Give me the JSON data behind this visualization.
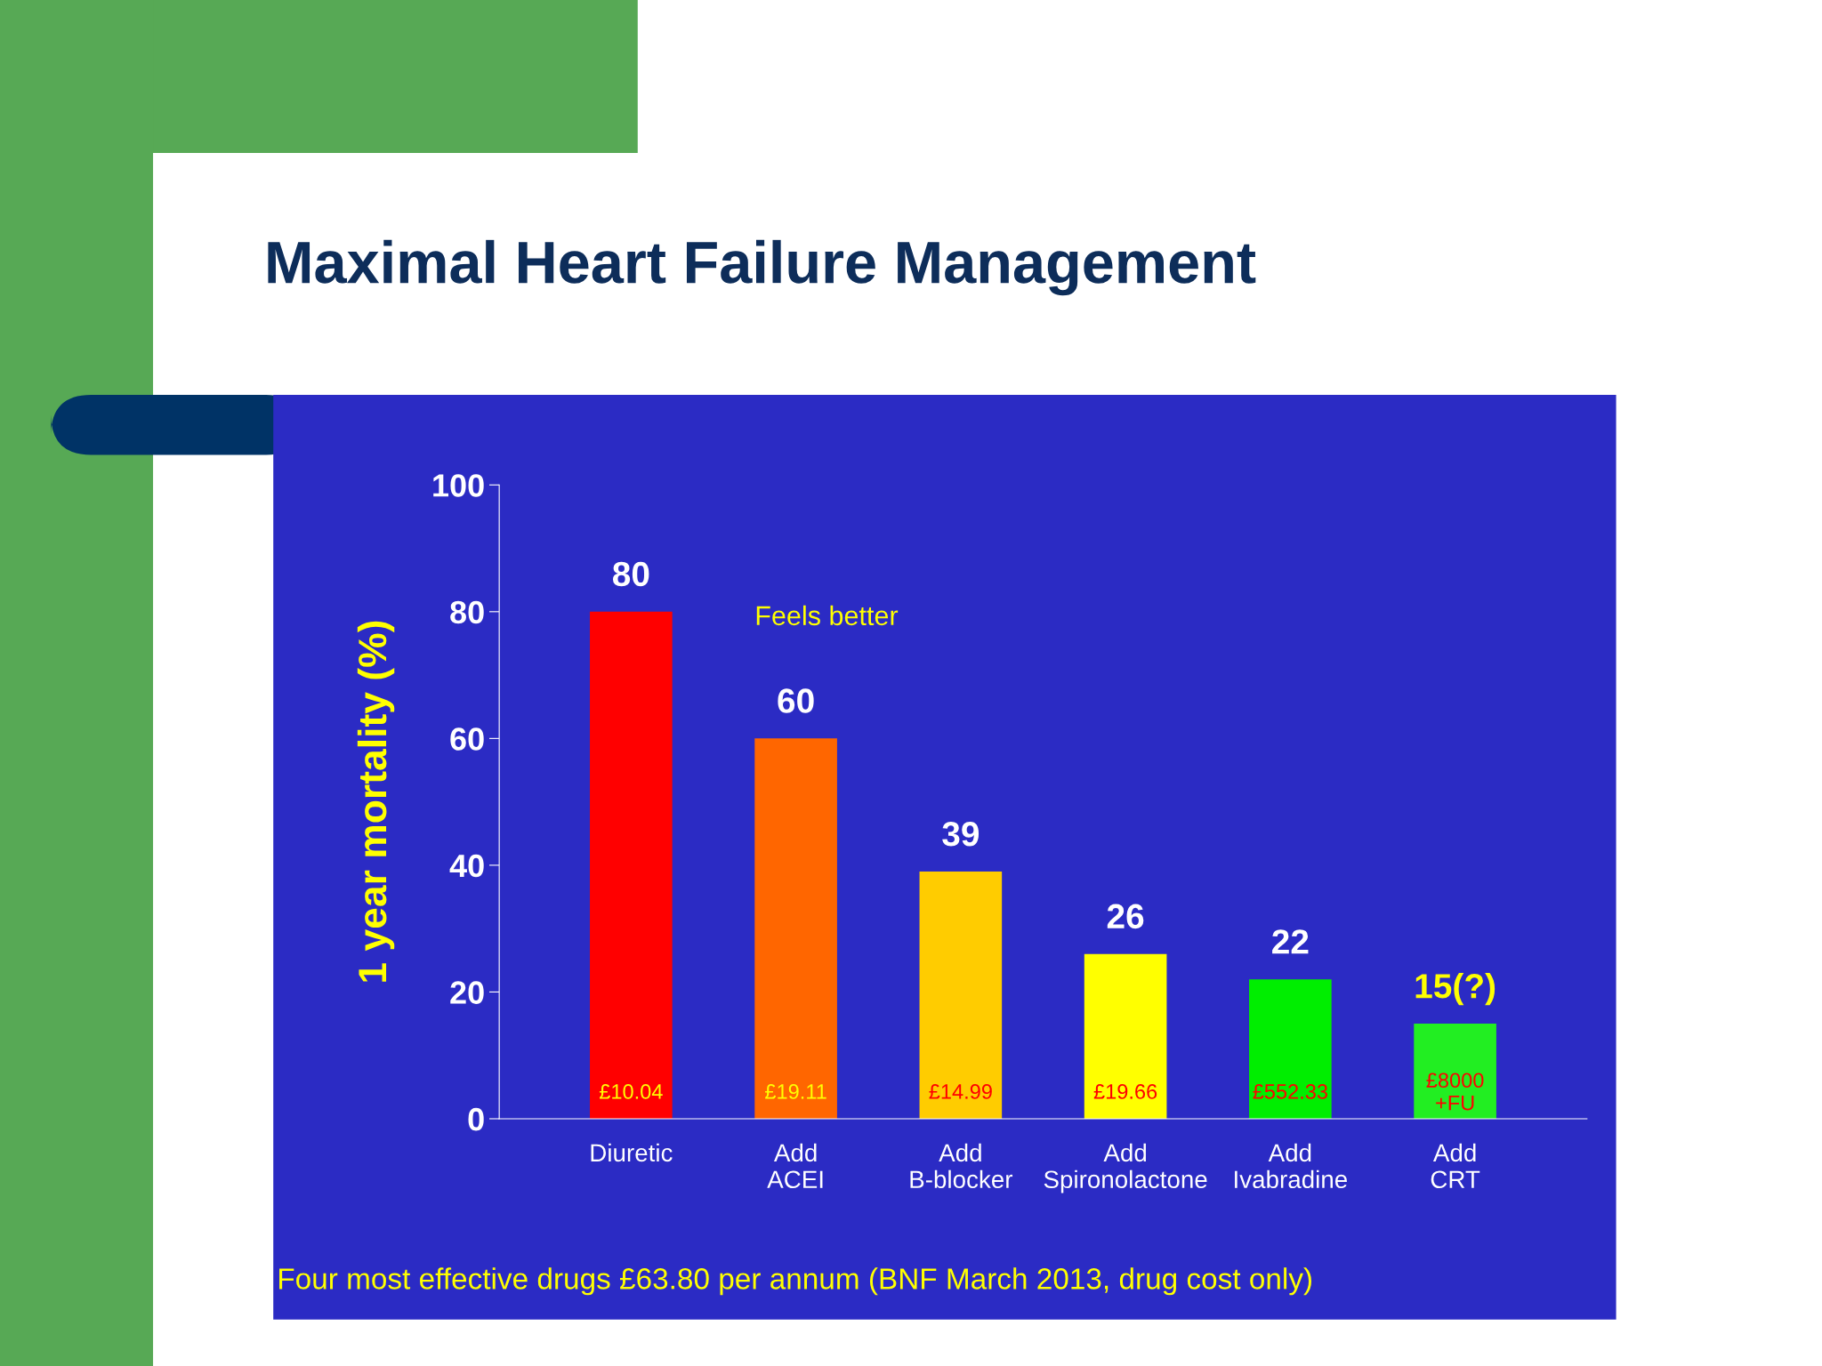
{
  "chart_data": {
    "type": "bar",
    "title": "Maximal Heart Failure Management",
    "ylabel": "1 year mortality (%)",
    "categories": [
      "Diuretic",
      "Add\nACEI",
      "Add\nB-blocker",
      "Add\nSpironolactone",
      "Add\nIvabradine",
      "Add\nCRT"
    ],
    "values": [
      80,
      60,
      39,
      26,
      22,
      15
    ],
    "colors": [
      "#ff0000",
      "#ff6600",
      "#ffcc00",
      "#ffff00",
      "#00ee00",
      "#22ee22"
    ],
    "value_labels": [
      "80",
      "60",
      "39",
      "26",
      "22",
      "15(?)"
    ],
    "ylim": [
      0,
      100
    ],
    "yticks": [
      0,
      20,
      40,
      60,
      80,
      100
    ],
    "annotations": [
      "£10.04",
      "£19.11",
      "£14.99",
      "£19.66",
      "£552.33",
      "£8000\n+FU",
      "Feels better",
      "Four most effective drugs £63.80 per annum (BNF March 2013, drug cost only)"
    ]
  }
}
